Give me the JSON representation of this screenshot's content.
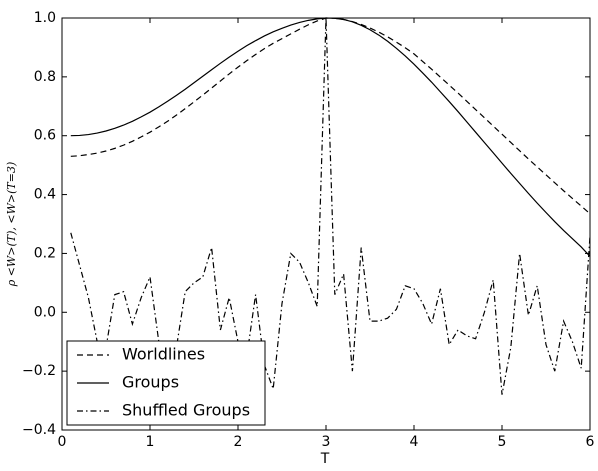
{
  "chart_data": {
    "type": "line",
    "x_label": "T",
    "y_label": "ρ <W>(T), <W>(T=3)",
    "x": [
      0.1,
      0.2,
      0.3,
      0.4,
      0.5,
      0.6,
      0.7,
      0.8,
      0.9,
      1.0,
      1.1,
      1.2,
      1.3,
      1.4,
      1.5,
      1.6,
      1.7,
      1.8,
      1.9,
      2.0,
      2.1,
      2.2,
      2.3,
      2.4,
      2.5,
      2.6,
      2.7,
      2.8,
      2.9,
      3.0,
      3.1,
      3.2,
      3.3,
      3.4,
      3.5,
      3.6,
      3.7,
      3.8,
      3.9,
      4.0,
      4.1,
      4.2,
      4.3,
      4.4,
      4.5,
      4.6,
      4.7,
      4.8,
      4.9,
      5.0,
      5.1,
      5.2,
      5.3,
      5.4,
      5.5,
      5.6,
      5.7,
      5.8,
      5.9,
      6.0
    ],
    "series": [
      {
        "name": "Worldlines",
        "color": "#000000",
        "dash": "dashed",
        "values": [
          0.53,
          0.532,
          0.536,
          0.541,
          0.548,
          0.557,
          0.568,
          0.581,
          0.596,
          0.612,
          0.63,
          0.649,
          0.67,
          0.692,
          0.715,
          0.738,
          0.762,
          0.786,
          0.81,
          0.833,
          0.855,
          0.876,
          0.896,
          0.914,
          0.93,
          0.946,
          0.962,
          0.977,
          0.99,
          1.0,
          0.999,
          0.995,
          0.988,
          0.978,
          0.966,
          0.952,
          0.936,
          0.918,
          0.899,
          0.878,
          0.852,
          0.826,
          0.799,
          0.772,
          0.745,
          0.717,
          0.689,
          0.661,
          0.633,
          0.605,
          0.577,
          0.549,
          0.521,
          0.494,
          0.467,
          0.44,
          0.413,
          0.387,
          0.361,
          0.335
        ]
      },
      {
        "name": "Groups",
        "color": "#000000",
        "dash": "solid",
        "values": [
          0.6,
          0.601,
          0.604,
          0.609,
          0.616,
          0.625,
          0.636,
          0.649,
          0.664,
          0.68,
          0.698,
          0.717,
          0.737,
          0.758,
          0.78,
          0.802,
          0.824,
          0.846,
          0.867,
          0.887,
          0.906,
          0.923,
          0.939,
          0.953,
          0.965,
          0.976,
          0.985,
          0.992,
          0.997,
          1.0,
          0.999,
          0.995,
          0.987,
          0.975,
          0.96,
          0.942,
          0.921,
          0.897,
          0.871,
          0.843,
          0.813,
          0.782,
          0.749,
          0.716,
          0.682,
          0.647,
          0.612,
          0.577,
          0.542,
          0.507,
          0.472,
          0.438,
          0.404,
          0.371,
          0.339,
          0.308,
          0.278,
          0.25,
          0.222,
          0.19
        ]
      },
      {
        "name": "Shuffled Groups",
        "color": "#000000",
        "dash": "dashdot",
        "values": [
          0.27,
          0.16,
          0.05,
          -0.1,
          -0.12,
          0.06,
          0.07,
          -0.04,
          0.05,
          0.12,
          -0.1,
          -0.17,
          -0.12,
          0.07,
          0.1,
          0.12,
          0.22,
          -0.06,
          0.05,
          -0.1,
          -0.15,
          0.06,
          -0.18,
          -0.26,
          0.03,
          0.2,
          0.17,
          0.1,
          0.02,
          1.0,
          0.06,
          0.13,
          -0.2,
          0.22,
          -0.03,
          -0.03,
          -0.02,
          0.01,
          0.09,
          0.08,
          0.03,
          -0.04,
          0.08,
          -0.11,
          -0.06,
          -0.08,
          -0.09,
          0.0,
          0.11,
          -0.28,
          -0.12,
          0.2,
          -0.01,
          0.09,
          -0.11,
          -0.2,
          -0.03,
          -0.1,
          -0.19,
          0.26
        ]
      }
    ],
    "xlim": [
      0,
      6
    ],
    "xticks": [
      0,
      1,
      2,
      3,
      4,
      5,
      6
    ],
    "ylim": [
      -0.4,
      1.0
    ],
    "yticks": [
      {
        "value": -0.4,
        "label": "−0.4"
      },
      {
        "value": -0.2,
        "label": "−0.2"
      },
      {
        "value": 0,
        "label": "0.0"
      },
      0.2,
      0.4,
      0.6,
      0.8,
      {
        "value": 1.0,
        "label": "1.0"
      }
    ],
    "legend": "lower left",
    "grid": false
  }
}
